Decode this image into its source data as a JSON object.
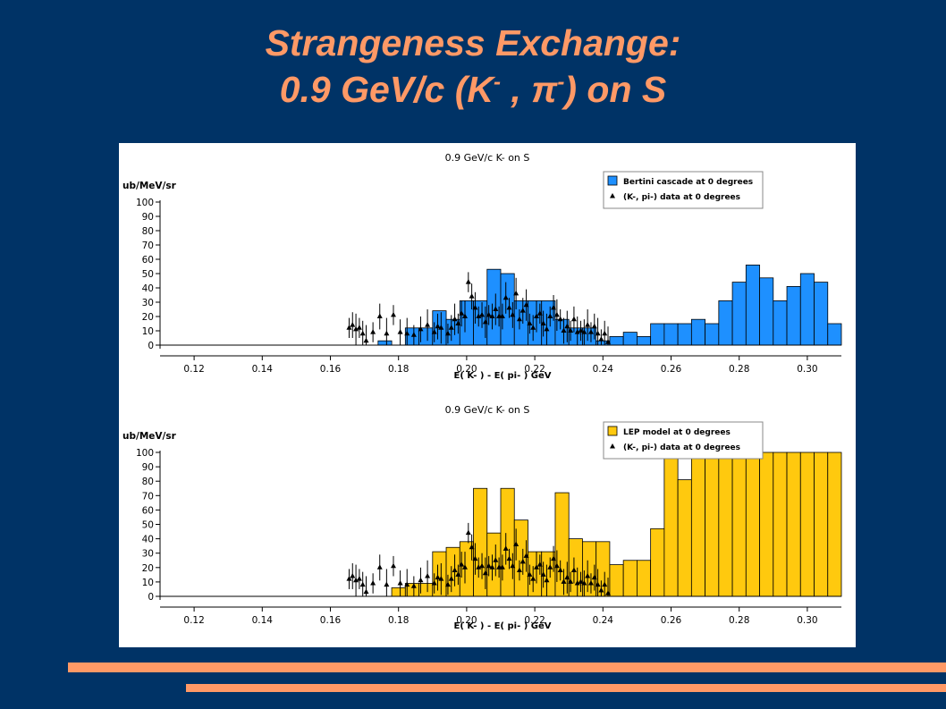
{
  "slide": {
    "title_line1": "Strangeness Exchange:",
    "title_line2_a": "0.9 GeV/c  (K",
    "title_line2_sup": "-",
    "title_line2_b": " , ",
    "title_line2_pi": "π",
    "title_line2_sup2": "-",
    "title_line2_c": ") on S",
    "title_color": "#FF9966",
    "background_color": "#003366"
  },
  "chart_data": [
    {
      "type": "bar",
      "title": "0.9 GeV/c K- on S",
      "ylabel": "ub/MeV/sr",
      "xlabel": "E( K- ) - E( pi- ) GeV",
      "xlim": [
        0.11,
        0.31
      ],
      "ylim": [
        0,
        100
      ],
      "xticks": [
        "0.12",
        "0.14",
        "0.16",
        "0.18",
        "0.20",
        "0.22",
        "0.24",
        "0.26",
        "0.28",
        "0.30"
      ],
      "yticks": [
        "0",
        "10",
        "20",
        "30",
        "40",
        "50",
        "60",
        "70",
        "80",
        "90",
        "100"
      ],
      "legend_position": "top-right",
      "series": [
        {
          "name": "Bertini cascade at 0 degrees",
          "color": "#1E90FF",
          "bin_width": 0.004,
          "x": [
            0.176,
            0.18,
            0.184,
            0.188,
            0.192,
            0.196,
            0.2,
            0.204,
            0.208,
            0.212,
            0.216,
            0.22,
            0.224,
            0.228,
            0.232,
            0.236,
            0.24,
            0.244,
            0.248,
            0.252,
            0.256,
            0.26,
            0.264,
            0.268,
            0.272,
            0.276,
            0.28,
            0.284,
            0.288,
            0.292,
            0.296,
            0.3,
            0.304,
            0.308
          ],
          "values": [
            3,
            0,
            12,
            12,
            24,
            18,
            31,
            31,
            53,
            50,
            31,
            31,
            31,
            18,
            12,
            12,
            3,
            6,
            9,
            6,
            15,
            15,
            15,
            18,
            15,
            31,
            44,
            56,
            47,
            31,
            41,
            50,
            44,
            15
          ]
        },
        {
          "name": "(K-, pi-) data at 0 degrees",
          "type": "scatter",
          "x": [
            0.1655,
            0.1665,
            0.1675,
            0.1685,
            0.1695,
            0.1705,
            0.1725,
            0.1745,
            0.1765,
            0.1785,
            0.1805,
            0.1825,
            0.1845,
            0.1865,
            0.1885,
            0.1905,
            0.1915,
            0.1925,
            0.1945,
            0.1955,
            0.1965,
            0.1975,
            0.1985,
            0.1995,
            0.2005,
            0.2015,
            0.2025,
            0.2035,
            0.2045,
            0.2055,
            0.2065,
            0.2075,
            0.2085,
            0.2095,
            0.2105,
            0.2115,
            0.2125,
            0.2135,
            0.2145,
            0.2155,
            0.2165,
            0.2175,
            0.2185,
            0.2195,
            0.2205,
            0.2215,
            0.2225,
            0.2235,
            0.2245,
            0.2255,
            0.2265,
            0.2275,
            0.2285,
            0.2295,
            0.2305,
            0.2315,
            0.2325,
            0.2335,
            0.2345,
            0.2355,
            0.2365,
            0.2375,
            0.2385,
            0.2395,
            0.2405,
            0.2415
          ],
          "values": [
            12,
            14,
            11,
            12,
            8,
            3,
            9,
            20,
            8,
            21,
            9,
            8,
            7,
            11,
            14,
            9,
            13,
            12,
            8,
            12,
            18,
            15,
            22,
            20,
            44,
            34,
            26,
            20,
            21,
            16,
            21,
            20,
            25,
            20,
            20,
            33,
            26,
            21,
            36,
            18,
            24,
            28,
            15,
            12,
            20,
            22,
            15,
            11,
            20,
            26,
            21,
            18,
            10,
            13,
            10,
            18,
            9,
            10,
            9,
            14,
            9,
            13,
            8,
            4,
            8,
            2
          ]
        }
      ]
    },
    {
      "type": "bar",
      "title": "0.9 GeV/c K- on S",
      "ylabel": "ub/MeV/sr",
      "xlabel": "E( K- ) - E( pi- ) GeV",
      "xlim": [
        0.11,
        0.31
      ],
      "ylim": [
        0,
        100
      ],
      "xticks": [
        "0.12",
        "0.14",
        "0.16",
        "0.18",
        "0.20",
        "0.22",
        "0.24",
        "0.26",
        "0.28",
        "0.30"
      ],
      "yticks": [
        "0",
        "10",
        "20",
        "30",
        "40",
        "50",
        "60",
        "70",
        "80",
        "90",
        "100"
      ],
      "legend_position": "top-right",
      "series": [
        {
          "name": "LEP model at 0 degrees",
          "color": "#FFC90E",
          "bin_width": 0.004,
          "x": [
            0.18,
            0.184,
            0.188,
            0.192,
            0.196,
            0.2,
            0.204,
            0.208,
            0.212,
            0.216,
            0.22,
            0.224,
            0.228,
            0.232,
            0.236,
            0.24,
            0.244,
            0.248,
            0.252,
            0.256,
            0.26,
            0.264,
            0.268,
            0.272,
            0.276,
            0.28,
            0.284,
            0.288,
            0.292,
            0.296,
            0.3,
            0.304,
            0.308
          ],
          "values": [
            6,
            9,
            9,
            31,
            34,
            38,
            75,
            44,
            75,
            53,
            31,
            31,
            72,
            40,
            38,
            38,
            22,
            25,
            25,
            47,
            100,
            81,
            100,
            100,
            100,
            100,
            100,
            100,
            100,
            100,
            100,
            100,
            100
          ]
        },
        {
          "name": "(K-, pi-) data at 0 degrees",
          "type": "scatter",
          "x": [
            0.1655,
            0.1665,
            0.1675,
            0.1685,
            0.1695,
            0.1705,
            0.1725,
            0.1745,
            0.1765,
            0.1785,
            0.1805,
            0.1825,
            0.1845,
            0.1865,
            0.1885,
            0.1905,
            0.1915,
            0.1925,
            0.1945,
            0.1955,
            0.1965,
            0.1975,
            0.1985,
            0.1995,
            0.2005,
            0.2015,
            0.2025,
            0.2035,
            0.2045,
            0.2055,
            0.2065,
            0.2075,
            0.2085,
            0.2095,
            0.2105,
            0.2115,
            0.2125,
            0.2135,
            0.2145,
            0.2155,
            0.2165,
            0.2175,
            0.2185,
            0.2195,
            0.2205,
            0.2215,
            0.2225,
            0.2235,
            0.2245,
            0.2255,
            0.2265,
            0.2275,
            0.2285,
            0.2295,
            0.2305,
            0.2315,
            0.2325,
            0.2335,
            0.2345,
            0.2355,
            0.2365,
            0.2375,
            0.2385,
            0.2395,
            0.2405,
            0.2415
          ],
          "values": [
            12,
            14,
            11,
            12,
            8,
            3,
            9,
            20,
            8,
            21,
            9,
            8,
            7,
            11,
            14,
            9,
            13,
            12,
            8,
            12,
            18,
            15,
            22,
            20,
            44,
            34,
            26,
            20,
            21,
            16,
            21,
            20,
            25,
            20,
            20,
            33,
            26,
            21,
            36,
            18,
            24,
            28,
            15,
            12,
            20,
            22,
            15,
            11,
            20,
            26,
            21,
            18,
            10,
            13,
            10,
            18,
            9,
            10,
            9,
            14,
            9,
            13,
            8,
            4,
            8,
            2
          ]
        }
      ]
    }
  ]
}
